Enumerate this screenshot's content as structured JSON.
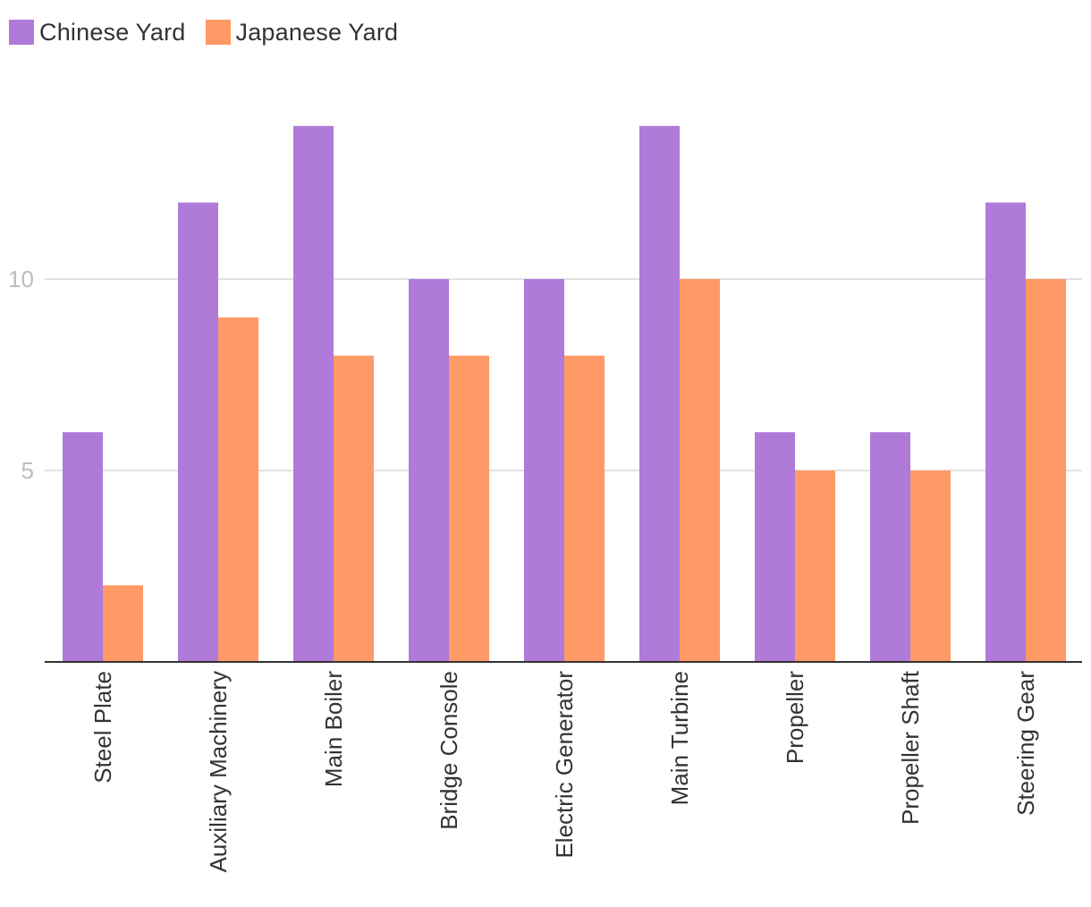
{
  "chart_data": {
    "type": "bar",
    "categories": [
      "Steel Plate",
      "Auxiliary Machinery",
      "Main Boiler",
      "Bridge Console",
      "Electric Generator",
      "Main Turbine",
      "Propeller",
      "Propeller Shaft",
      "Steering Gear"
    ],
    "series": [
      {
        "name": "Chinese Yard",
        "color": "#b07ad9",
        "values": [
          6,
          12,
          14,
          10,
          10,
          14,
          6,
          6,
          12
        ]
      },
      {
        "name": "Japanese Yard",
        "color": "#ff9966",
        "values": [
          2,
          9,
          8,
          8,
          8,
          10,
          5,
          5,
          10
        ]
      }
    ],
    "ylim": [
      0,
      14
    ],
    "yticks": [
      5,
      10
    ],
    "grid": true,
    "legend": "top-left",
    "title": "",
    "xlabel": "",
    "ylabel": ""
  }
}
